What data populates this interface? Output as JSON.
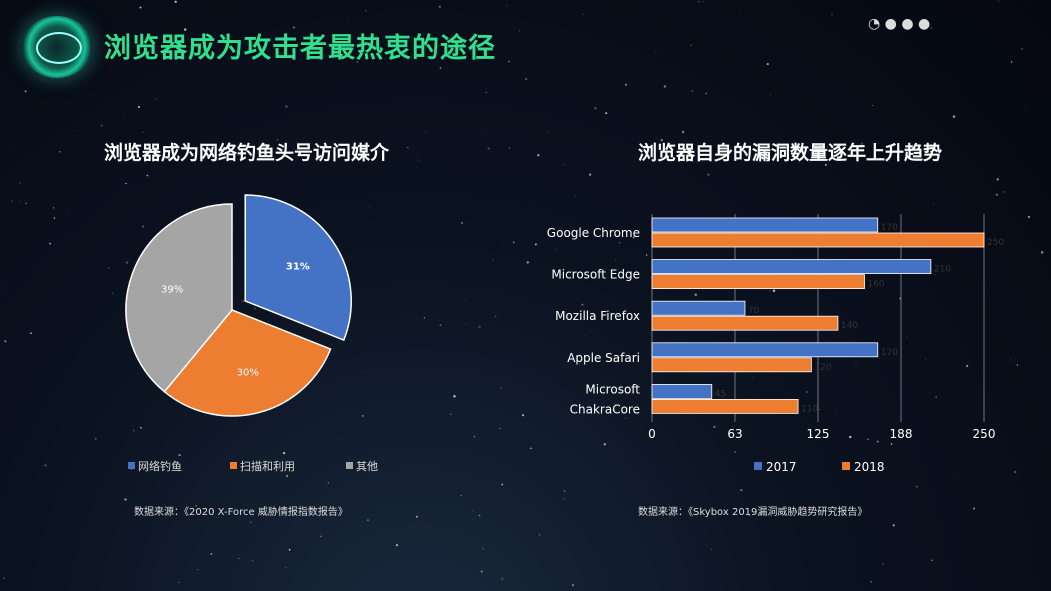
{
  "slide": {
    "title": "浏览器成为攻击者最热衷的途径",
    "left_title": "浏览器成为网络钓鱼头号访问媒介",
    "right_title": "浏览器自身的漏洞数量逐年上升趋势",
    "left_source": "数据来源：《2020 X-Force 威胁情报指数报告》",
    "right_source": "数据来源：《Skybox 2019漏洞威胁趋势研究报告》"
  },
  "colors": {
    "title_green": "#2fe08f",
    "blue": "#4472c4",
    "orange": "#ed7d31",
    "gray": "#a5a5a5"
  },
  "chart_data": [
    {
      "type": "pie",
      "title": "浏览器成为网络钓鱼头号访问媒介",
      "labels": [
        "网络钓鱼",
        "扫描和利用",
        "其他"
      ],
      "values": [
        31,
        30,
        39
      ],
      "value_labels": [
        "31%",
        "30%",
        "39%"
      ],
      "exploded": [
        true,
        false,
        false
      ],
      "colors": [
        "#4472c4",
        "#ed7d31",
        "#a5a5a5"
      ],
      "legend": "bottom"
    },
    {
      "type": "bar",
      "orientation": "horizontal",
      "title": "浏览器自身的漏洞数量逐年上升趋势",
      "categories": [
        "Google Chrome",
        "Microsoft Edge",
        "Mozilla Firefox",
        "Apple Safari",
        "Microsoft ChakraCore"
      ],
      "category_lines": [
        [
          "Google Chrome"
        ],
        [
          "Microsoft Edge"
        ],
        [
          "Mozilla Firefox"
        ],
        [
          "Apple Safari"
        ],
        [
          "Microsoft",
          "ChakraCore"
        ]
      ],
      "series": [
        {
          "name": "2017",
          "values": [
            170,
            210,
            70,
            170,
            45
          ],
          "color": "#4472c4"
        },
        {
          "name": "2018",
          "values": [
            250,
            160,
            140,
            120,
            110
          ],
          "color": "#ed7d31"
        }
      ],
      "xlim": [
        0,
        250
      ],
      "xticks": [
        "0",
        "63",
        "125",
        "188",
        "250"
      ],
      "grid": true,
      "legend": "bottom"
    }
  ]
}
